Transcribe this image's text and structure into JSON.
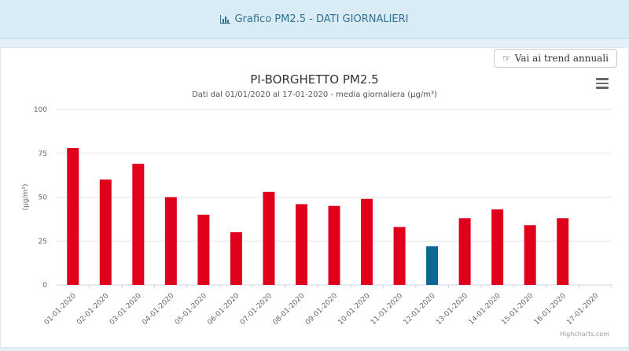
{
  "header": {
    "title": "Grafico PM2.5 - DATI GIORNALIERI"
  },
  "toolbar": {
    "trend_label": "Vai ai trend annuali"
  },
  "credits": "Highcharts.com",
  "chart_data": {
    "type": "bar",
    "title": "PI-BORGHETTO PM2.5",
    "subtitle": "Dati dal 01/01/2020 al 17-01-2020 - media giornaliera (µg/m³)",
    "ylabel": "(µg/m³)",
    "ylim": [
      0,
      100
    ],
    "yticks": [
      0,
      25,
      50,
      75,
      100
    ],
    "grid": true,
    "categories": [
      "01-01-2020",
      "02-01-2020",
      "03-01-2020",
      "04-01-2020",
      "05-01-2020",
      "06-01-2020",
      "07-01-2020",
      "08-01-2020",
      "09-01-2020",
      "10-01-2020",
      "11-01-2020",
      "12-01-2020",
      "13-01-2020",
      "14-01-2020",
      "15-01-2020",
      "16-01-2020",
      "17-01-2020"
    ],
    "values": [
      78,
      60,
      69,
      50,
      40,
      30,
      53,
      46,
      45,
      49,
      33,
      22,
      38,
      43,
      34,
      38,
      null
    ],
    "colors": {
      "default": "#e0001b",
      "highlight": "#0c6791",
      "highlight_index": 11
    }
  }
}
